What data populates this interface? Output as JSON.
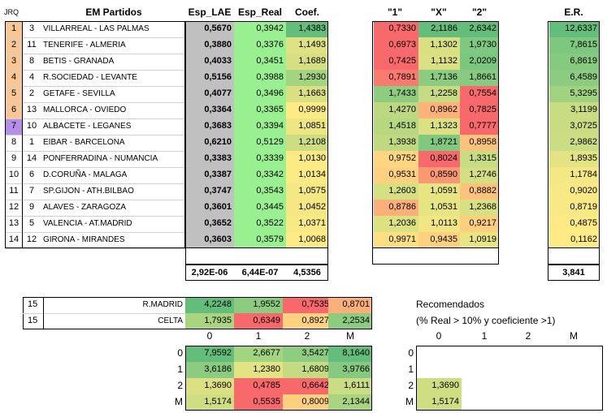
{
  "headers": {
    "jrq": "JRQ",
    "partidos": "EM Partidos",
    "lae": "Esp_LAE",
    "real": "Esp_Real",
    "coef": "Coef.",
    "h1": "\"1\"",
    "hx": "\"X\"",
    "h2": "\"2\"",
    "er": "E.R."
  },
  "rows": [
    {
      "n": "1",
      "j": "3",
      "match": "VILLARREAL - LAS PALMAS",
      "lae": "0,5670",
      "real": "0,3942",
      "coef": "1,4383",
      "p1": "0,7330",
      "px": "2,1186",
      "p2": "2,6342",
      "er": "12,6337",
      "ncol": "#f9c793",
      "c1": "#f8696b",
      "cx": "#63be7b",
      "c2": "#63be7b",
      "cc": "#63be7b",
      "ce": "#63be7b"
    },
    {
      "n": "2",
      "j": "11",
      "match": "TENERIFE - ALMERIA",
      "lae": "0,3880",
      "real": "0,3376",
      "coef": "1,1493",
      "p1": "0,6973",
      "px": "1,1302",
      "p2": "1,9730",
      "er": "7,8615",
      "ncol": "#f9c793",
      "c1": "#f8696b",
      "cx": "#d8e082",
      "c2": "#7ec97f",
      "cc": "#dfe283",
      "ce": "#7dc87e"
    },
    {
      "n": "3",
      "j": "8",
      "match": "BETIS - GRANADA",
      "lae": "0,4033",
      "real": "0,3451",
      "coef": "1,1689",
      "p1": "0,7425",
      "px": "1,1132",
      "p2": "2,0209",
      "er": "6,8619",
      "ncol": "#f9c793",
      "c1": "#f8696b",
      "cx": "#dbe182",
      "c2": "#7ac77f",
      "cc": "#d6e082",
      "ce": "#86ca7f"
    },
    {
      "n": "4",
      "j": "4",
      "match": "R.SOCIEDAD - LEVANTE",
      "lae": "0,5156",
      "real": "0,3988",
      "coef": "1,2930",
      "p1": "0,7891",
      "px": "1,7136",
      "p2": "1,8661",
      "er": "6,4589",
      "ncol": "#f9c793",
      "c1": "#f97a6e",
      "cx": "#8bcc80",
      "c2": "#88cb80",
      "cc": "#a5d480",
      "ce": "#8ccc80"
    },
    {
      "n": "5",
      "j": "2",
      "match": "GETAFE - SEVILLA",
      "lae": "0,4077",
      "real": "0,3496",
      "coef": "1,1663",
      "p1": "1,7433",
      "px": "1,2258",
      "p2": "0,7554",
      "er": "5,3295",
      "ncol": "#f9c793",
      "c1": "#8ecd80",
      "cx": "#c6db82",
      "c2": "#f8696b",
      "cc": "#d8e082",
      "ce": "#a0d380"
    },
    {
      "n": "6",
      "j": "13",
      "match": "MALLORCA - OVIEDO",
      "lae": "0,3364",
      "real": "0,3365",
      "coef": "0,9999",
      "p1": "1,4270",
      "px": "0,8962",
      "p2": "0,7825",
      "er": "3,1199",
      "ncol": "#f9c793",
      "c1": "#bcd881",
      "cx": "#fcb279",
      "c2": "#f8696b",
      "cc": "#ffeb84",
      "ce": "#c8dc82"
    },
    {
      "n": "7",
      "j": "10",
      "match": "ALBACETE - LEGANES",
      "lae": "0,3683",
      "real": "0,3394",
      "coef": "1,0851",
      "p1": "1,4518",
      "px": "1,1323",
      "p2": "0,7777",
      "er": "3,0725",
      "ncol": "#b48fe8",
      "c1": "#b8d781",
      "cx": "#dbe182",
      "c2": "#f8696b",
      "cc": "#ede683",
      "ce": "#c9dc82"
    },
    {
      "n": "8",
      "j": "1",
      "match": "EIBAR - BARCELONA",
      "lae": "0,6210",
      "real": "0,5129",
      "coef": "1,2108",
      "p1": "1,3938",
      "px": "1,8721",
      "p2": "0,8958",
      "er": "2,9862",
      "ncol": "#ffffff",
      "c1": "#c0d981",
      "cx": "#80c97f",
      "c2": "#fdc37c",
      "cc": "#cdde82",
      "ce": "#cadd82"
    },
    {
      "n": "9",
      "j": "14",
      "match": "PONFERRADINA - NUMANCIA",
      "lae": "0,3383",
      "real": "0,3339",
      "coef": "1,0130",
      "p1": "0,9752",
      "px": "0,8024",
      "p2": "1,3315",
      "er": "1,8935",
      "ncol": "#ffffff",
      "c1": "#fed680",
      "cx": "#f8696b",
      "c2": "#c8dc82",
      "cc": "#fcea84",
      "ce": "#e3e383"
    },
    {
      "n": "10",
      "j": "6",
      "match": "D.CORUÑA - MALAGA",
      "lae": "0,3387",
      "real": "0,3342",
      "coef": "1,0134",
      "p1": "0,9531",
      "px": "0,8590",
      "p2": "1,2746",
      "er": "1,1784",
      "ncol": "#ffffff",
      "c1": "#fdd17f",
      "cx": "#fa9873",
      "c2": "#d3df82",
      "cc": "#fcea84",
      "ce": "#f3e884"
    },
    {
      "n": "11",
      "j": "7",
      "match": "SP.GIJON - ATH.BILBAO",
      "lae": "0,3747",
      "real": "0,3543",
      "coef": "1,0575",
      "p1": "1,2603",
      "px": "1,0591",
      "p2": "0,8882",
      "er": "0,9020",
      "ncol": "#ffffff",
      "c1": "#d6e082",
      "cx": "#e6e483",
      "c2": "#fdc27c",
      "cc": "#f3e884",
      "ce": "#f9e984"
    },
    {
      "n": "12",
      "j": "9",
      "match": "ALAVES - ZARAGOZA",
      "lae": "0,3601",
      "real": "0,3445",
      "coef": "1,0452",
      "p1": "0,8786",
      "px": "1,0531",
      "p2": "1,2368",
      "er": "0,8719",
      "ncol": "#ffffff",
      "c1": "#fbb079",
      "cx": "#e7e483",
      "c2": "#d9e082",
      "cc": "#f5e884",
      "ce": "#f9e984"
    },
    {
      "n": "13",
      "j": "5",
      "match": "VALENCIA - AT.MADRID",
      "lae": "0,3652",
      "real": "0,3522",
      "coef": "1,0371",
      "p1": "1,2036",
      "px": "1,0113",
      "p2": "0,9217",
      "er": "0,4875",
      "ncol": "#ffffff",
      "c1": "#dce182",
      "cx": "#f0e784",
      "c2": "#fecf7f",
      "cc": "#f7e984",
      "ce": "#feea84"
    },
    {
      "n": "14",
      "j": "12",
      "match": "GIRONA - MIRANDES",
      "lae": "0,3603",
      "real": "0,3579",
      "coef": "1,0068",
      "p1": "0,9971",
      "px": "0,9435",
      "p2": "1,0919",
      "er": "0,1162",
      "ncol": "#ffffff",
      "c1": "#fedf82",
      "cx": "#fdd17f",
      "c2": "#e8e583",
      "cc": "#feeb84",
      "ce": "#ffeb84"
    }
  ],
  "totals": {
    "lae": "2,92E-06",
    "real": "6,44E-07",
    "coef": "4,5356",
    "er": "3,841"
  },
  "pleno": [
    {
      "n": "15",
      "team": "R.MADRID",
      "v": [
        "4,2248",
        "1,9552",
        "0,7535",
        "0,8701"
      ],
      "c": [
        "#63be7b",
        "#8ccc80",
        "#f8696b",
        "#fcb079"
      ]
    },
    {
      "n": "15",
      "team": "CELTA",
      "v": [
        "1,7935",
        "0,6349",
        "0,8927",
        "2,2534"
      ],
      "c": [
        "#a9d580",
        "#f8696b",
        "#fed380",
        "#8bcc80"
      ]
    }
  ],
  "grid": {
    "cols": [
      "0",
      "1",
      "2",
      "M"
    ],
    "rows": [
      {
        "h": "0",
        "v": [
          "7,9592",
          "2,6677",
          "3,5427",
          "8,1640"
        ],
        "c": [
          "#63be7b",
          "#a3d480",
          "#8ecd80",
          "#63be7b"
        ]
      },
      {
        "h": "1",
        "v": [
          "3,6186",
          "1,2380",
          "1,6809",
          "3,9766"
        ],
        "c": [
          "#8bcc80",
          "#e2e383",
          "#c4db82",
          "#85ca7f"
        ]
      },
      {
        "h": "2",
        "v": [
          "1,3690",
          "0,4785",
          "0,6642",
          "1,6111"
        ],
        "c": [
          "#dbe182",
          "#f8696b",
          "#f8696b",
          "#cadd82"
        ]
      },
      {
        "h": "M",
        "v": [
          "1,5174",
          "0,5535",
          "0,8009",
          "2,1344"
        ],
        "c": [
          "#d0de82",
          "#f8696b",
          "#fecf7f",
          "#a9d580"
        ]
      }
    ]
  },
  "recom": {
    "title": "Recomendados",
    "sub": "(% Real > 10% y coeficiente >1)",
    "cols": [
      "0",
      "1",
      "2",
      "M"
    ],
    "rows": [
      "0",
      "1",
      "2",
      "M"
    ],
    "cells": [
      {
        "r": 2,
        "v": "1,3690"
      },
      {
        "r": 3,
        "v": "1,5174"
      }
    ]
  }
}
